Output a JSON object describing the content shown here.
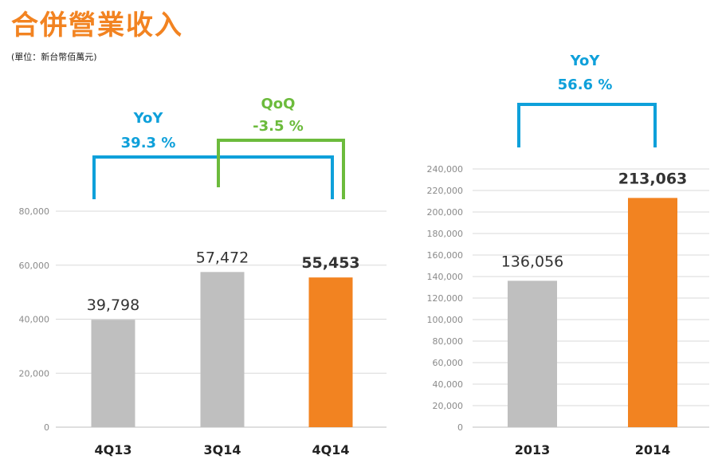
{
  "header": {
    "title": "合併營業收入",
    "unit_note": "(單位：新台幣佰萬元)"
  },
  "colors": {
    "accent": "#f28321",
    "gray_bar": "#bfbfbf",
    "yoy": "#0ea0da",
    "qoq": "#6cbb3c",
    "grid": "#d9d9d9"
  },
  "chart_data": [
    {
      "type": "bar",
      "categories": [
        "4Q13",
        "3Q14",
        "4Q14"
      ],
      "values": [
        39798,
        57472,
        55453
      ],
      "value_labels": [
        "39,798",
        "57,472",
        "55,453"
      ],
      "highlight_index": 2,
      "ylim": [
        0,
        80000
      ],
      "yticks": [
        0,
        20000,
        40000,
        60000,
        80000
      ],
      "ytick_labels": [
        "0",
        "20,000",
        "40,000",
        "60,000",
        "80,000"
      ],
      "grid": true,
      "annotations": [
        {
          "type": "yoy",
          "label": "YoY",
          "value": "39.3 %",
          "from": "4Q13",
          "to": "4Q14"
        },
        {
          "type": "qoq",
          "label": "QoQ",
          "value": "-3.5 %",
          "from": "3Q14",
          "to": "4Q14"
        }
      ]
    },
    {
      "type": "bar",
      "categories": [
        "2013",
        "2014"
      ],
      "values": [
        136056,
        213063
      ],
      "value_labels": [
        "136,056",
        "213,063"
      ],
      "highlight_index": 1,
      "ylim": [
        0,
        240000
      ],
      "yticks": [
        0,
        20000,
        40000,
        60000,
        80000,
        100000,
        120000,
        140000,
        160000,
        180000,
        200000,
        220000,
        240000
      ],
      "ytick_labels": [
        "0",
        "20,000",
        "40,000",
        "60,000",
        "80,000",
        "100,000",
        "120,000",
        "140,000",
        "160,000",
        "180,000",
        "200,000",
        "220,000",
        "240,000"
      ],
      "grid": true,
      "annotations": [
        {
          "type": "yoy",
          "label": "YoY",
          "value": "56.6 %",
          "from": "2013",
          "to": "2014"
        }
      ]
    }
  ]
}
